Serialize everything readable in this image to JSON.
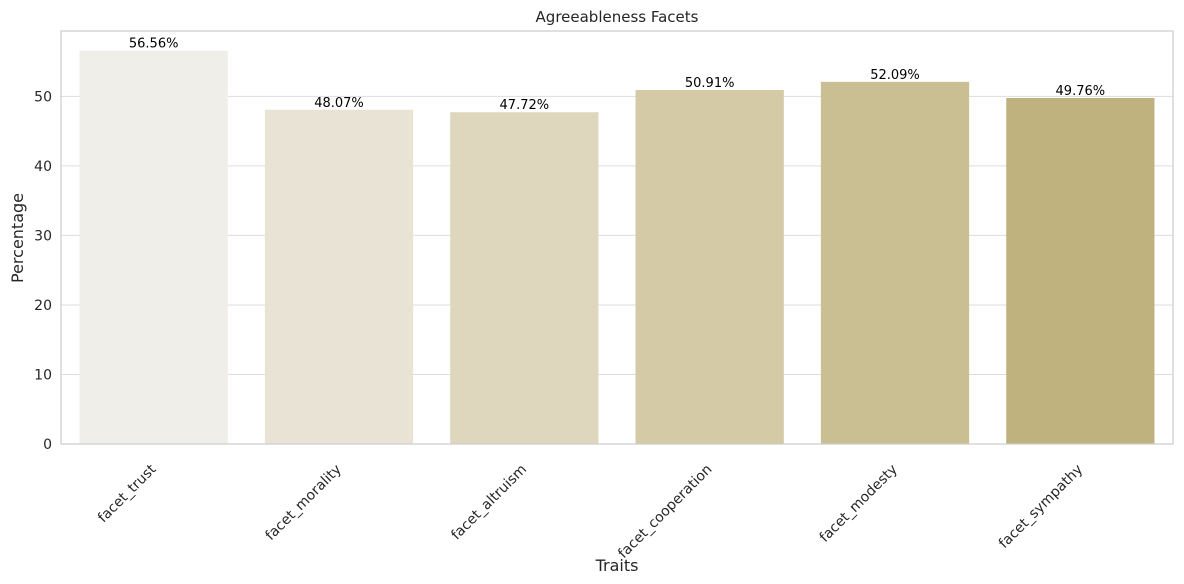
{
  "chart_data": {
    "type": "bar",
    "title": "Agreeableness Facets",
    "xlabel": "Traits",
    "ylabel": "Percentage",
    "categories": [
      "facet_trust",
      "facet_morality",
      "facet_altruism",
      "facet_cooperation",
      "facet_modesty",
      "facet_sympathy"
    ],
    "values": [
      56.56,
      48.07,
      47.72,
      50.91,
      52.09,
      49.76
    ],
    "value_labels": [
      "56.56%",
      "48.07%",
      "47.72%",
      "50.91%",
      "52.09%",
      "49.76%"
    ],
    "bar_colors": [
      "#f0eee9",
      "#e8e3d5",
      "#ded7be",
      "#d4caa6",
      "#cabf92",
      "#c0b27e"
    ],
    "ylim": [
      0,
      59.4
    ],
    "yticks": [
      0,
      10,
      20,
      30,
      40,
      50
    ],
    "ytick_labels": [
      "0",
      "10",
      "20",
      "30",
      "40",
      "50"
    ],
    "grid": "horizontal",
    "x_tick_rotation_deg": 45,
    "legend": "none"
  }
}
